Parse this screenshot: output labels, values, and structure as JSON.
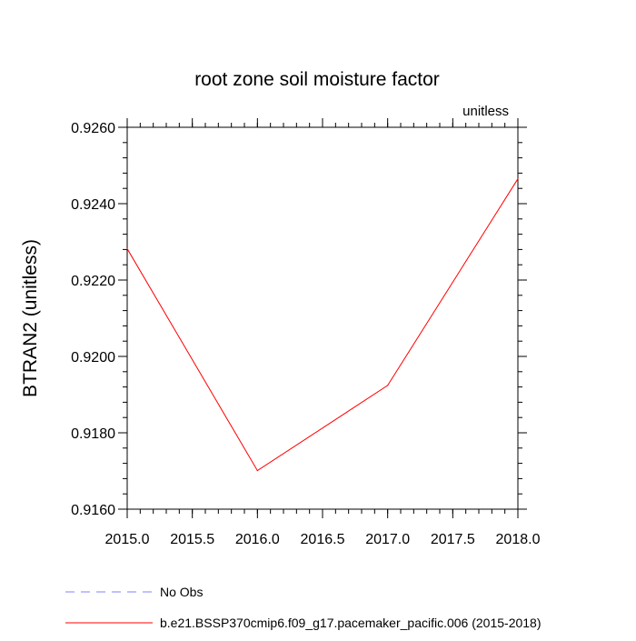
{
  "chart_data": {
    "type": "line",
    "title": "root zone soil moisture factor",
    "units_label": "unitless",
    "ylabel": "BTRAN2  (unitless)",
    "xlabel": "",
    "xlim": [
      2015.0,
      2018.0
    ],
    "ylim": [
      0.916,
      0.926
    ],
    "x_ticks": [
      "2015.0",
      "2015.5",
      "2016.0",
      "2016.5",
      "2017.0",
      "2017.5",
      "2018.0"
    ],
    "x_tick_values": [
      2015.0,
      2015.5,
      2016.0,
      2016.5,
      2017.0,
      2017.5,
      2018.0
    ],
    "y_ticks": [
      "0.9160",
      "0.9180",
      "0.9200",
      "0.9220",
      "0.9240",
      "0.9260"
    ],
    "y_tick_values": [
      0.916,
      0.918,
      0.92,
      0.922,
      0.924,
      0.926
    ],
    "y_minor_step": 0.0004,
    "x_minor_step": 0.1,
    "grid": false,
    "legend_position": "bottom",
    "series": [
      {
        "name": "No Obs",
        "color": "#8080ff",
        "dash": "dashed",
        "x": [],
        "y": []
      },
      {
        "name": "b.e21.BSSP370cmip6.f09_g17.pacemaker_pacific.006 (2015-2018)",
        "color": "#ff0000",
        "dash": "solid",
        "x": [
          2015.0,
          2016.0,
          2017.0,
          2018.0
        ],
        "y": [
          0.92282,
          0.91701,
          0.91924,
          0.92465
        ]
      }
    ]
  }
}
